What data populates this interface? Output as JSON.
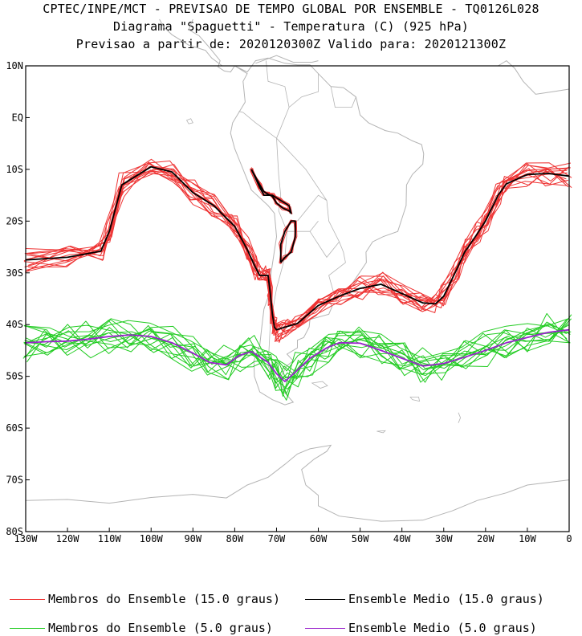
{
  "chart_data": {
    "type": "line",
    "title": "CPTEC/INPE/MCT - PREVISAO DE TEMPO GLOBAL POR ENSEMBLE - TQ0126L028",
    "subtitle": "Diagrama \"Spaguetti\" - Temperatura (C) (925 hPa)",
    "subtitle2": "Previsao a partir de: 2020120300Z  Valido para: 2020121300Z",
    "xlabel": "",
    "ylabel": "",
    "xlim": [
      -130,
      0
    ],
    "ylim": [
      -80,
      10
    ],
    "x_ticks": [
      -130,
      -120,
      -110,
      -100,
      -90,
      -80,
      -70,
      -60,
      -50,
      -40,
      -30,
      -20,
      -10,
      0
    ],
    "x_tick_labels": [
      "130W",
      "120W",
      "110W",
      "100W",
      "90W",
      "80W",
      "70W",
      "60W",
      "50W",
      "40W",
      "30W",
      "20W",
      "10W",
      "0"
    ],
    "y_ticks": [
      10,
      0,
      -10,
      -20,
      -30,
      -40,
      -50,
      -60,
      -70,
      -80
    ],
    "y_tick_labels": [
      "10N",
      "EQ",
      "10S",
      "20S",
      "30S",
      "40S",
      "50S",
      "60S",
      "70S",
      "80S"
    ],
    "legend": {
      "placement": "bottom",
      "items": [
        {
          "label": "Membros do Ensemble (15.0 graus)",
          "color": "#ee3333"
        },
        {
          "label": "Ensemble Medio (15.0 graus)",
          "color": "#000000"
        },
        {
          "label": "Membros do Ensemble (5.0 graus)",
          "color": "#22cc22"
        },
        {
          "label": "Ensemble Medio (5.0 graus)",
          "color": "#9922cc"
        }
      ]
    },
    "series": [
      {
        "name": "Ensemble Medio (15.0 graus)",
        "color": "#000000",
        "x": [
          -130,
          -120,
          -112,
          -110,
          -107,
          -100,
          -95,
          -90,
          -85,
          -80,
          -77,
          -75,
          -74,
          -72,
          -71.5,
          -71,
          -70.5,
          -70,
          -68,
          -65,
          -60,
          -55,
          -50,
          -45,
          -40,
          -35,
          -32,
          -30,
          -27,
          -25,
          -22,
          -20,
          -17,
          -15,
          -10,
          -5,
          0
        ],
        "y": [
          -27.5,
          -27,
          -25.8,
          -22,
          -13,
          -9.5,
          -10.5,
          -14.5,
          -17,
          -21,
          -25.5,
          -29,
          -30.5,
          -30.5,
          -34,
          -38,
          -40.5,
          -41,
          -40.5,
          -39.8,
          -36.3,
          -34.5,
          -33,
          -32.2,
          -34,
          -35.8,
          -36,
          -34.5,
          -29.5,
          -26,
          -22.5,
          -20,
          -15,
          -12.8,
          -11,
          -10.8,
          -11.3
        ]
      },
      {
        "name": "Ensemble Medio (15.0 graus)",
        "color": "#000000",
        "x": [
          -76,
          -74,
          -73,
          -71,
          -69,
          -67,
          -66.5,
          -67,
          -68.5,
          -70,
          -71,
          -72,
          -73,
          -74,
          -76
        ],
        "y": [
          -10,
          -13.5,
          -15,
          -15,
          -16,
          -17,
          -18.5,
          -18,
          -17.5,
          -16.5,
          -15.2,
          -14.8,
          -14.3,
          -13,
          -10
        ]
      },
      {
        "name": "Ensemble Medio (15.0 graus)",
        "color": "#000000",
        "x": [
          -69,
          -68,
          -66.5,
          -65.5,
          -65.5,
          -66.5,
          -68,
          -69,
          -69
        ],
        "y": [
          -28,
          -27,
          -26,
          -23,
          -20,
          -20,
          -22,
          -24.5,
          -28
        ]
      },
      {
        "name": "Ensemble Medio (5.0 graus)",
        "color": "#9922cc",
        "x": [
          -130,
          -125,
          -120,
          -115,
          -110,
          -105,
          -100,
          -95,
          -90,
          -86,
          -82,
          -79,
          -76,
          -72,
          -70,
          -68,
          -65,
          -62,
          -58,
          -55,
          -50,
          -45,
          -40,
          -35,
          -30,
          -25,
          -20,
          -15,
          -10,
          -5,
          0
        ],
        "y": [
          -43.5,
          -43.3,
          -43.2,
          -42.8,
          -42.3,
          -42,
          -42.3,
          -43.5,
          -45.5,
          -47.3,
          -47.8,
          -46,
          -45.2,
          -47.3,
          -49.5,
          -51,
          -48.8,
          -46.5,
          -44.5,
          -43.5,
          -43.6,
          -45,
          -46.5,
          -48,
          -47.5,
          -46.3,
          -45,
          -43.5,
          -42.5,
          -41.5,
          -41
        ]
      }
    ]
  },
  "map": {
    "description_free": true,
    "coast_color": "#b4b4b4"
  }
}
